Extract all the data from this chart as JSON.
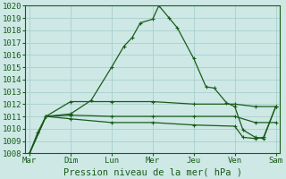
{
  "background_color": "#cde8e5",
  "grid_color": "#aacfcc",
  "line_color": "#1a5c1a",
  "xlabel": "Pression niveau de la mer( hPa )",
  "ylim": [
    1008,
    1020
  ],
  "yticks": [
    1008,
    1009,
    1010,
    1011,
    1012,
    1013,
    1014,
    1015,
    1016,
    1017,
    1018,
    1019,
    1020
  ],
  "x_labels": [
    "Mar",
    "Dim",
    "Lun",
    "Mer",
    "Jeu",
    "Ven",
    "Sam"
  ],
  "x_positions": [
    0,
    1,
    2,
    3,
    4,
    5,
    6
  ],
  "series_high": [
    [
      0.0,
      1008.0
    ],
    [
      0.2,
      1009.7
    ],
    [
      0.4,
      1011.0
    ],
    [
      1.0,
      1011.2
    ],
    [
      1.5,
      1012.3
    ],
    [
      2.0,
      1015.0
    ],
    [
      2.3,
      1016.7
    ],
    [
      2.5,
      1017.4
    ],
    [
      2.7,
      1018.6
    ],
    [
      3.0,
      1018.9
    ],
    [
      3.15,
      1020.0
    ],
    [
      3.4,
      1019.0
    ],
    [
      3.6,
      1018.2
    ],
    [
      4.0,
      1015.7
    ],
    [
      4.3,
      1013.4
    ],
    [
      4.5,
      1013.3
    ],
    [
      4.8,
      1012.1
    ],
    [
      5.0,
      1011.8
    ],
    [
      5.2,
      1009.9
    ],
    [
      5.5,
      1009.3
    ],
    [
      5.7,
      1009.2
    ],
    [
      6.0,
      1011.8
    ]
  ],
  "series_mid1": [
    [
      0.0,
      1008.0
    ],
    [
      0.4,
      1011.0
    ],
    [
      1.0,
      1012.2
    ],
    [
      2.0,
      1012.2
    ],
    [
      3.0,
      1012.2
    ],
    [
      4.0,
      1012.0
    ],
    [
      5.0,
      1012.0
    ],
    [
      5.5,
      1011.8
    ],
    [
      6.0,
      1011.8
    ]
  ],
  "series_mid2": [
    [
      0.0,
      1008.0
    ],
    [
      0.4,
      1011.0
    ],
    [
      1.0,
      1011.1
    ],
    [
      2.0,
      1011.0
    ],
    [
      3.0,
      1011.0
    ],
    [
      4.0,
      1011.0
    ],
    [
      5.0,
      1011.0
    ],
    [
      5.5,
      1010.5
    ],
    [
      6.0,
      1010.5
    ]
  ],
  "series_low": [
    [
      0.0,
      1008.0
    ],
    [
      0.4,
      1011.0
    ],
    [
      1.0,
      1010.8
    ],
    [
      2.0,
      1010.5
    ],
    [
      3.0,
      1010.5
    ],
    [
      4.0,
      1010.3
    ],
    [
      5.0,
      1010.2
    ],
    [
      5.2,
      1009.3
    ],
    [
      5.5,
      1009.2
    ],
    [
      5.7,
      1009.3
    ],
    [
      6.0,
      1011.8
    ]
  ]
}
